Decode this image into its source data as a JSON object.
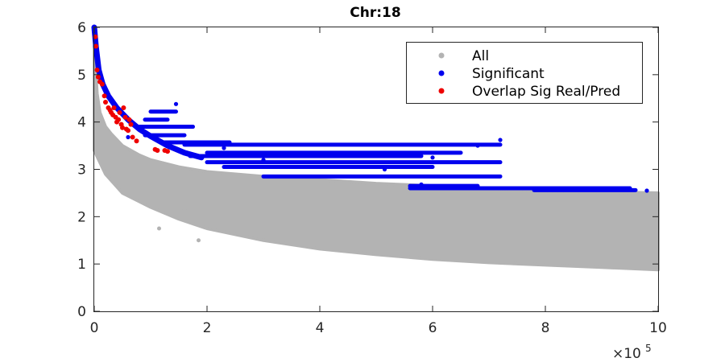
{
  "chart_data": {
    "type": "scatter",
    "title": "Chr:18",
    "xlabel": "",
    "ylabel": "",
    "xlim": [
      0,
      1000000
    ],
    "ylim": [
      0,
      6
    ],
    "x_tick_values": [
      0,
      200000,
      400000,
      600000,
      800000,
      1000000
    ],
    "x_tick_labels": [
      "0",
      "2",
      "4",
      "6",
      "8",
      "10"
    ],
    "y_tick_values": [
      0,
      1,
      2,
      3,
      4,
      5,
      6
    ],
    "y_tick_labels": [
      "0",
      "1",
      "2",
      "3",
      "4",
      "5",
      "6"
    ],
    "x_exponent_base": "×10",
    "x_exponent": "5",
    "grid": false,
    "legend_position": "top-right",
    "series": [
      {
        "name": "All",
        "color": "#b3b3b3",
        "upper_envelope": [
          [
            0,
            5.6
          ],
          [
            5000,
            4.6
          ],
          [
            10000,
            4.2
          ],
          [
            20000,
            3.9
          ],
          [
            30000,
            3.75
          ],
          [
            50000,
            3.5
          ],
          [
            80000,
            3.3
          ],
          [
            100000,
            3.2
          ],
          [
            150000,
            3.05
          ],
          [
            200000,
            2.95
          ],
          [
            300000,
            2.85
          ],
          [
            400000,
            2.78
          ],
          [
            500000,
            2.7
          ],
          [
            600000,
            2.65
          ],
          [
            700000,
            2.6
          ],
          [
            800000,
            2.55
          ],
          [
            900000,
            2.52
          ],
          [
            1000000,
            2.5
          ]
        ],
        "lower_envelope": [
          [
            0,
            3.4
          ],
          [
            20000,
            2.9
          ],
          [
            50000,
            2.5
          ],
          [
            100000,
            2.2
          ],
          [
            150000,
            1.95
          ],
          [
            200000,
            1.75
          ],
          [
            300000,
            1.5
          ],
          [
            400000,
            1.32
          ],
          [
            500000,
            1.2
          ],
          [
            600000,
            1.1
          ],
          [
            700000,
            1.03
          ],
          [
            800000,
            0.98
          ],
          [
            900000,
            0.93
          ],
          [
            1000000,
            0.88
          ]
        ],
        "outliers": [
          [
            115000,
            1.75
          ],
          [
            185000,
            1.5
          ],
          [
            160000,
            2.15
          ],
          [
            60000,
            2.55
          ],
          [
            40000,
            2.75
          ]
        ]
      },
      {
        "name": "Significant",
        "color": "#0000ee",
        "curve": [
          [
            0,
            6.0
          ],
          [
            3000,
            5.6
          ],
          [
            8000,
            5.1
          ],
          [
            15000,
            4.8
          ],
          [
            25000,
            4.55
          ],
          [
            40000,
            4.3
          ],
          [
            60000,
            4.05
          ],
          [
            80000,
            3.85
          ],
          [
            100000,
            3.7
          ],
          [
            130000,
            3.5
          ],
          [
            160000,
            3.35
          ],
          [
            190000,
            3.25
          ]
        ],
        "segments": [
          {
            "x_start": 100000,
            "x_end": 145000,
            "y": 4.22
          },
          {
            "x_start": 90000,
            "x_end": 130000,
            "y": 4.05
          },
          {
            "x_start": 80000,
            "x_end": 175000,
            "y": 3.9
          },
          {
            "x_start": 90000,
            "x_end": 160000,
            "y": 3.72
          },
          {
            "x_start": 120000,
            "x_end": 240000,
            "y": 3.57
          },
          {
            "x_start": 160000,
            "x_end": 720000,
            "y": 3.52
          },
          {
            "x_start": 200000,
            "x_end": 650000,
            "y": 3.35
          },
          {
            "x_start": 170000,
            "x_end": 580000,
            "y": 3.28
          },
          {
            "x_start": 200000,
            "x_end": 720000,
            "y": 3.15
          },
          {
            "x_start": 230000,
            "x_end": 600000,
            "y": 3.05
          },
          {
            "x_start": 300000,
            "x_end": 720000,
            "y": 2.85
          },
          {
            "x_start": 560000,
            "x_end": 680000,
            "y": 2.65
          },
          {
            "x_start": 560000,
            "x_end": 950000,
            "y": 2.6
          },
          {
            "x_start": 780000,
            "x_end": 960000,
            "y": 2.56
          }
        ],
        "points": [
          [
            145000,
            4.38
          ],
          [
            60000,
            3.68
          ],
          [
            230000,
            3.45
          ],
          [
            255000,
            3.32
          ],
          [
            515000,
            3.0
          ],
          [
            600000,
            3.25
          ],
          [
            720000,
            3.62
          ],
          [
            680000,
            3.5
          ],
          [
            620000,
            2.62
          ],
          [
            980000,
            2.55
          ],
          [
            580000,
            2.68
          ],
          [
            300000,
            3.2
          ]
        ]
      },
      {
        "name": "Overlap Sig Real/Pred",
        "color": "#ee0000",
        "points": [
          [
            2000,
            5.8
          ],
          [
            3000,
            5.6
          ],
          [
            5000,
            5.1
          ],
          [
            7000,
            4.95
          ],
          [
            10000,
            4.85
          ],
          [
            14000,
            4.8
          ],
          [
            18000,
            4.55
          ],
          [
            20000,
            4.42
          ],
          [
            25000,
            4.3
          ],
          [
            28000,
            4.25
          ],
          [
            30000,
            4.2
          ],
          [
            33000,
            4.15
          ],
          [
            35000,
            4.3
          ],
          [
            38000,
            4.1
          ],
          [
            40000,
            4.0
          ],
          [
            43000,
            4.05
          ],
          [
            45000,
            4.2
          ],
          [
            48000,
            3.95
          ],
          [
            50000,
            3.88
          ],
          [
            52000,
            4.3
          ],
          [
            55000,
            4.1
          ],
          [
            57000,
            3.85
          ],
          [
            60000,
            3.82
          ],
          [
            62000,
            4.05
          ],
          [
            65000,
            3.95
          ],
          [
            68000,
            3.68
          ],
          [
            75000,
            3.6
          ],
          [
            108000,
            3.42
          ],
          [
            112000,
            3.4
          ],
          [
            125000,
            3.4
          ],
          [
            130000,
            3.38
          ]
        ]
      }
    ]
  }
}
